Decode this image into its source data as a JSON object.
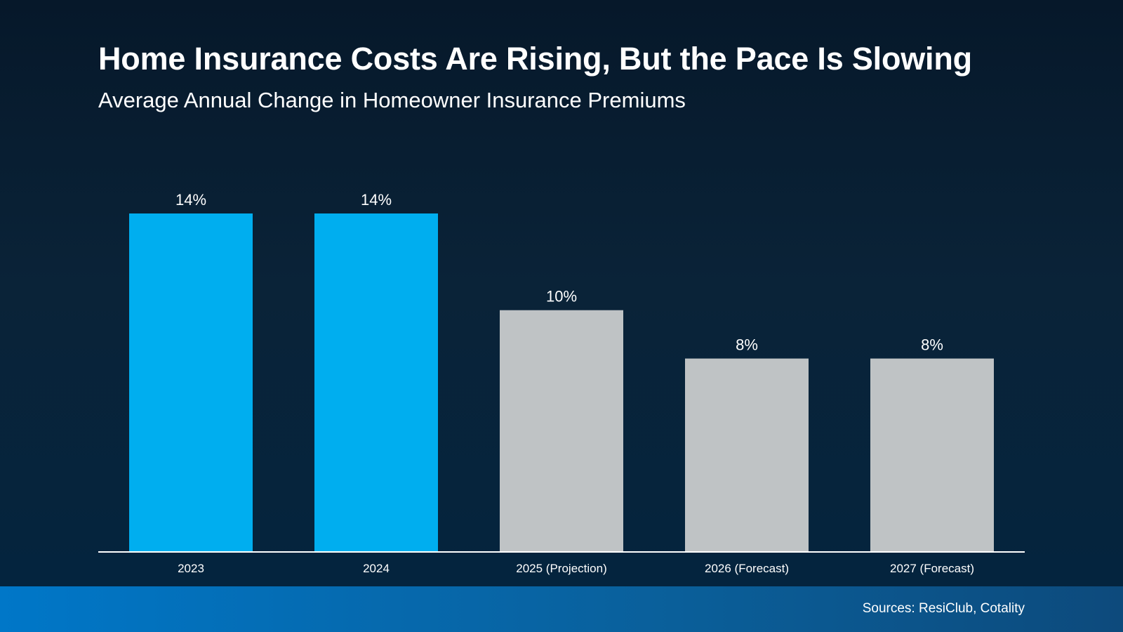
{
  "chart_data": {
    "type": "bar",
    "title": "Home Insurance Costs Are Rising, But the Pace Is Slowing",
    "subtitle": "Average Annual Change in Homeowner Insurance Premiums",
    "categories": [
      "2023",
      "2024",
      "2025 (Projection)",
      "2026 (Forecast)",
      "2027 (Forecast)"
    ],
    "values": [
      14,
      14,
      10,
      8,
      8
    ],
    "value_labels": [
      "14%",
      "14%",
      "10%",
      "8%",
      "8%"
    ],
    "bar_colors": [
      "#00aeef",
      "#00aeef",
      "#bfc3c5",
      "#bfc3c5",
      "#bfc3c5"
    ],
    "ylim": [
      0,
      14
    ],
    "grid": false,
    "legend": "none"
  },
  "footer": {
    "source": "Sources: ResiClub, Cotality"
  },
  "colors": {
    "background": "#0a2338",
    "actual_bar": "#00aeef",
    "projected_bar": "#bfc3c5",
    "footer_band": "#0077c8",
    "axis_line": "#ffffff"
  }
}
